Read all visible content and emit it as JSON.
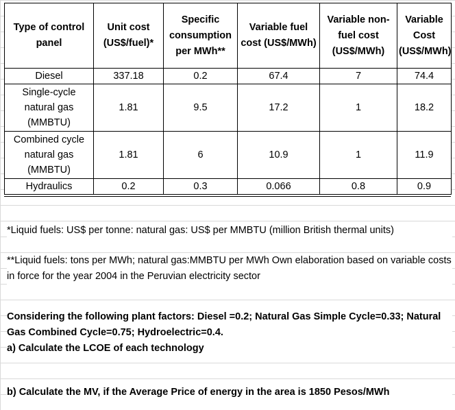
{
  "table": {
    "headers": [
      "Type of control panel",
      "Unit cost (US$/fuel)*",
      "Specific consumption per MWh**",
      "Variable fuel cost (US$/MWh)",
      "Variable non-fuel cost (US$/MWh)",
      "Variable Cost (US$/MWh)"
    ],
    "rows": [
      [
        "Diesel",
        "337.18",
        "0.2",
        "67.4",
        "7",
        "74.4"
      ],
      [
        "Single-cycle natural gas (MMBTU)",
        "1.81",
        "9.5",
        "17.2",
        "1",
        "18.2"
      ],
      [
        "Combined cycle natural gas (MMBTU)",
        "1.81",
        "6",
        "10.9",
        "1",
        "11.9"
      ],
      [
        "Hydraulics",
        "0.2",
        "0.3",
        "0.066",
        "0.8",
        "0.9"
      ]
    ]
  },
  "notes": {
    "footnote1": "*Liquid fuels: US$ per tonne: natural gas: US$ per MMBTU (million British thermal units)",
    "footnote2": "**Liquid fuels: tons per MWh; natural gas:MMBTU per MWh Own elaboration based on variable costs in force for the year 2004 in the Peruvian electricity sector",
    "question_intro": "Considering the following plant factors: Diesel =0.2; Natural Gas Simple Cycle=0.33; Natural Gas Combined Cycle=0.75; Hydroelectric=0.4.",
    "question_a": "a) Calculate the LCOE of each technology",
    "question_b": "b) Calculate the MV, if the Average Price of energy in the area is 1850 Pesos/MWh"
  }
}
